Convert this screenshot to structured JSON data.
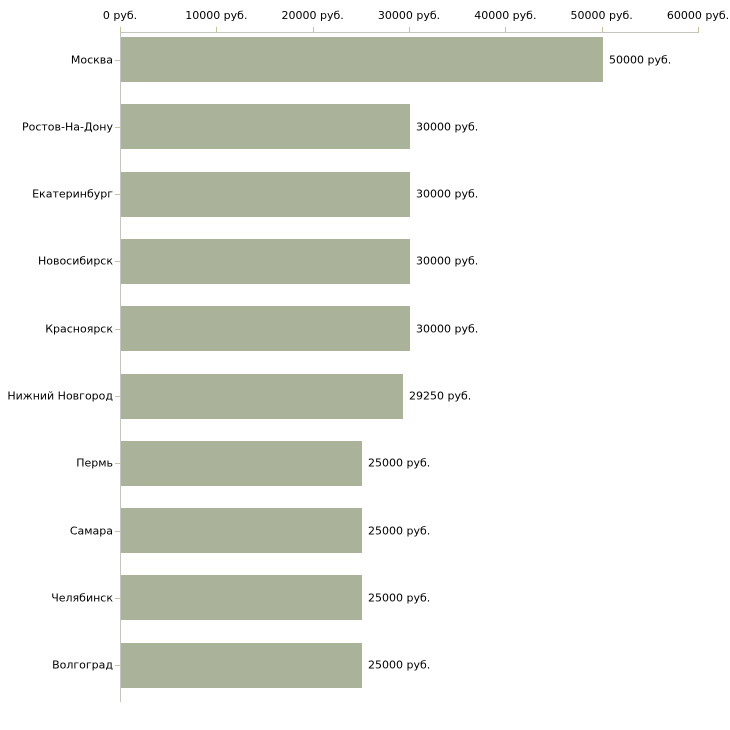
{
  "chart_data": {
    "type": "bar",
    "orientation": "horizontal",
    "categories": [
      "Москва",
      "Ростов-На-Дону",
      "Екатеринбург",
      "Новосибирск",
      "Красноярск",
      "Нижний Новгород",
      "Пермь",
      "Самара",
      "Челябинск",
      "Волгоград"
    ],
    "values": [
      50000,
      30000,
      30000,
      30000,
      30000,
      29250,
      25000,
      25000,
      25000,
      25000
    ],
    "value_labels": [
      "50000 руб.",
      "30000 руб.",
      "30000 руб.",
      "30000 руб.",
      "30000 руб.",
      "29250 руб.",
      "25000 руб.",
      "25000 руб.",
      "25000 руб.",
      "25000 руб."
    ],
    "x_axis": {
      "position": "top",
      "min": 0,
      "max": 60000,
      "ticks": [
        0,
        10000,
        20000,
        30000,
        40000,
        50000,
        60000
      ],
      "tick_labels": [
        "0 руб.",
        "10000 руб.",
        "20000 руб.",
        "30000 руб.",
        "40000 руб.",
        "50000 руб.",
        "60000 руб."
      ]
    },
    "title": "",
    "xlabel": "",
    "ylabel": "",
    "grid": false,
    "legend": false,
    "colors": {
      "bar_fill": "#abb29a",
      "axis_line": "#c5c5c0",
      "tick_mark": "#c6c2a0",
      "label_text": "#000000",
      "background": "#ffffff"
    }
  }
}
